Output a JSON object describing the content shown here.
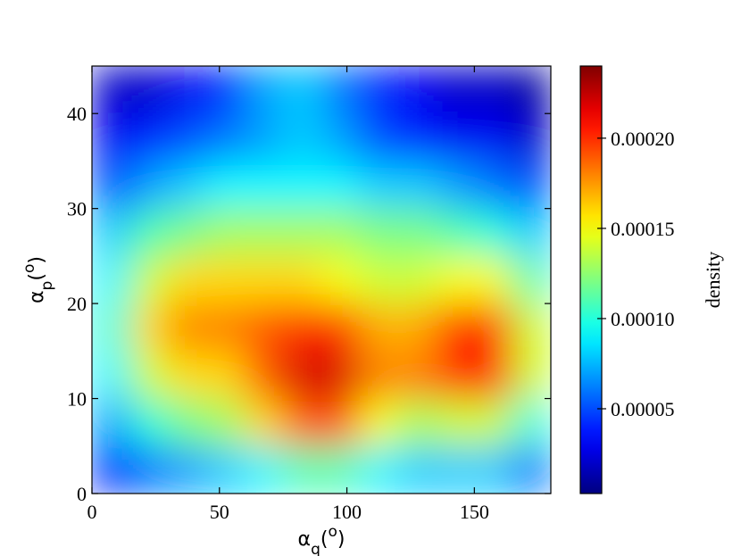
{
  "chart_data": {
    "type": "heatmap",
    "x": [
      7.5,
      22.5,
      37.5,
      52.5,
      67.5,
      82.5,
      97.5,
      112.5,
      127.5,
      142.5,
      157.5,
      172.5
    ],
    "y": [
      2.5,
      7.5,
      12.5,
      17.5,
      22.5,
      27.5,
      32.5,
      37.5,
      42.5
    ],
    "values": [
      [
        4e-05,
        6e-05,
        7e-05,
        8e-05,
        9e-05,
        0.00011,
        0.00011,
        9e-05,
        8e-05,
        8e-05,
        8e-05,
        6e-05
      ],
      [
        7e-05,
        0.0001,
        0.00012,
        0.00013,
        0.00016,
        0.00019,
        0.00019,
        0.00015,
        0.00013,
        0.00014,
        0.00014,
        0.0001
      ],
      [
        9e-05,
        0.00014,
        0.00016,
        0.00016,
        0.00019,
        0.00022,
        0.00022,
        0.00018,
        0.00018,
        0.0002,
        0.00021,
        0.00014
      ],
      [
        0.0001,
        0.00016,
        0.00018,
        0.00018,
        0.00019,
        0.0002,
        0.0002,
        0.00017,
        0.00017,
        0.0002,
        0.0002,
        0.00014
      ],
      [
        9e-05,
        0.00014,
        0.00016,
        0.00016,
        0.00016,
        0.00016,
        0.00015,
        0.00014,
        0.00014,
        0.00015,
        0.00015,
        0.00011
      ],
      [
        8e-05,
        0.00011,
        0.00012,
        0.00013,
        0.00013,
        0.00013,
        0.00013,
        0.00012,
        0.00012,
        0.00011,
        0.0001,
        8e-05
      ],
      [
        5e-05,
        7e-05,
        8e-05,
        9e-05,
        9e-05,
        9e-05,
        9e-05,
        8e-05,
        8e-05,
        7e-05,
        6e-05,
        5e-05
      ],
      [
        3e-05,
        4e-05,
        5e-05,
        6e-05,
        7e-05,
        8e-05,
        7e-05,
        5e-05,
        4e-05,
        3e-05,
        3e-05,
        2e-05
      ],
      [
        2e-05,
        2e-05,
        3e-05,
        4e-05,
        7e-05,
        8e-05,
        6e-05,
        4e-05,
        3e-05,
        2e-05,
        2e-05,
        1e-05
      ]
    ],
    "xlim": [
      0,
      180
    ],
    "ylim": [
      0,
      45
    ],
    "xticks": [
      0,
      50,
      100,
      150
    ],
    "yticks": [
      0,
      10,
      20,
      30,
      40
    ],
    "xlabel": [
      {
        "text": "α"
      },
      {
        "text": "q",
        "shift": "sub"
      },
      {
        "text": "("
      },
      {
        "text": "o",
        "shift": "super"
      },
      {
        "text": ")"
      }
    ],
    "ylabel": [
      {
        "text": "α"
      },
      {
        "text": "p",
        "shift": "sub"
      },
      {
        "text": "("
      },
      {
        "text": "o",
        "shift": "super"
      },
      {
        "text": ")"
      }
    ],
    "colormap": "jet",
    "clim": [
      3e-06,
      0.00024
    ],
    "cticks": [
      5e-05,
      {
        "value": 0.0001,
        "label": "0.00010"
      },
      0.00015,
      {
        "value": 0.0002,
        "label": "0.00020"
      }
    ],
    "colorbar_label": "density"
  }
}
